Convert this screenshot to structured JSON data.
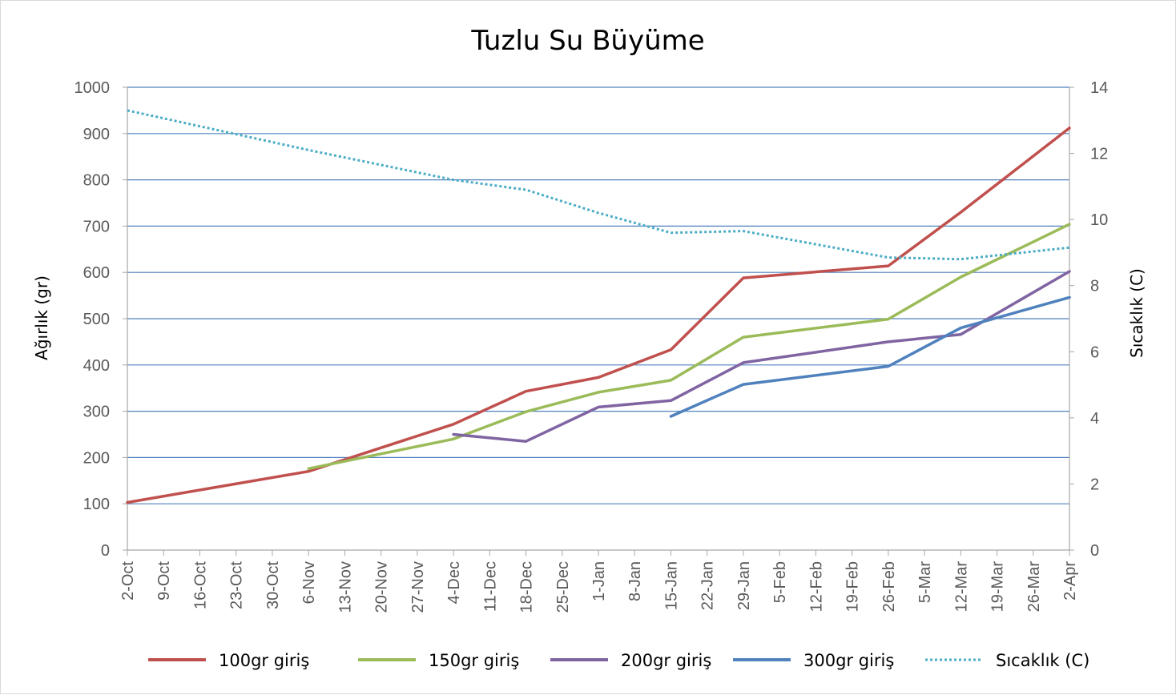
{
  "chart_data": {
    "type": "line",
    "title": "Tuzlu Su Büyüme",
    "ylabel": "Ağırlık (gr)",
    "y2label": "Sıcaklık (C)",
    "ylim": [
      0,
      1000
    ],
    "y2lim": [
      0,
      14
    ],
    "yticks": [
      0,
      100,
      200,
      300,
      400,
      500,
      600,
      700,
      800,
      900,
      1000
    ],
    "y2ticks": [
      0,
      2,
      4,
      6,
      8,
      10,
      12,
      14
    ],
    "grid": true,
    "legend_position": "bottom",
    "categories": [
      "2-Oct",
      "9-Oct",
      "16-Oct",
      "23-Oct",
      "30-Oct",
      "6-Nov",
      "13-Nov",
      "20-Nov",
      "27-Nov",
      "4-Dec",
      "11-Dec",
      "18-Dec",
      "25-Dec",
      "1-Jan",
      "8-Jan",
      "15-Jan",
      "22-Jan",
      "29-Jan",
      "5-Feb",
      "12-Feb",
      "19-Feb",
      "26-Feb",
      "5-Mar",
      "12-Mar",
      "19-Mar",
      "26-Mar",
      "2-Apr"
    ],
    "series": [
      {
        "name": "100gr giriş",
        "axis": "left",
        "color": "#c0504d",
        "dashed": false,
        "values": [
          {
            "x": 0,
            "y": 103
          },
          {
            "x": 5,
            "y": 170
          },
          {
            "x": 9,
            "y": 272
          },
          {
            "x": 11,
            "y": 343
          },
          {
            "x": 13,
            "y": 373
          },
          {
            "x": 15,
            "y": 433
          },
          {
            "x": 17,
            "y": 588
          },
          {
            "x": 21,
            "y": 614
          },
          {
            "x": 23,
            "y": 730
          },
          {
            "x": 26,
            "y": 912
          }
        ]
      },
      {
        "name": "150gr giriş",
        "axis": "left",
        "color": "#9bbb59",
        "dashed": false,
        "values": [
          {
            "x": 5,
            "y": 176
          },
          {
            "x": 9,
            "y": 240
          },
          {
            "x": 11,
            "y": 299
          },
          {
            "x": 13,
            "y": 341
          },
          {
            "x": 15,
            "y": 367
          },
          {
            "x": 17,
            "y": 460
          },
          {
            "x": 21,
            "y": 499
          },
          {
            "x": 23,
            "y": 590
          },
          {
            "x": 26,
            "y": 704
          }
        ]
      },
      {
        "name": "200gr giriş",
        "axis": "left",
        "color": "#8064a2",
        "dashed": false,
        "values": [
          {
            "x": 9,
            "y": 250
          },
          {
            "x": 11,
            "y": 235
          },
          {
            "x": 13,
            "y": 309
          },
          {
            "x": 15,
            "y": 323
          },
          {
            "x": 17,
            "y": 405
          },
          {
            "x": 21,
            "y": 450
          },
          {
            "x": 23,
            "y": 466
          },
          {
            "x": 26,
            "y": 602
          }
        ]
      },
      {
        "name": "300gr giriş",
        "axis": "left",
        "color": "#4f81bd",
        "dashed": false,
        "values": [
          {
            "x": 15,
            "y": 289
          },
          {
            "x": 17,
            "y": 358
          },
          {
            "x": 21,
            "y": 397
          },
          {
            "x": 23,
            "y": 480
          },
          {
            "x": 26,
            "y": 546
          }
        ]
      },
      {
        "name": "Sıcaklık (C)",
        "axis": "right",
        "color": "#4bacc6",
        "dashed": true,
        "values": [
          {
            "x": 0,
            "y": 13.3
          },
          {
            "x": 5,
            "y": 12.1
          },
          {
            "x": 9,
            "y": 11.2
          },
          {
            "x": 11,
            "y": 10.9
          },
          {
            "x": 13,
            "y": 10.2
          },
          {
            "x": 15,
            "y": 9.6
          },
          {
            "x": 17,
            "y": 9.65
          },
          {
            "x": 21,
            "y": 8.85
          },
          {
            "x": 23,
            "y": 8.8
          },
          {
            "x": 26,
            "y": 9.15
          }
        ]
      }
    ]
  }
}
